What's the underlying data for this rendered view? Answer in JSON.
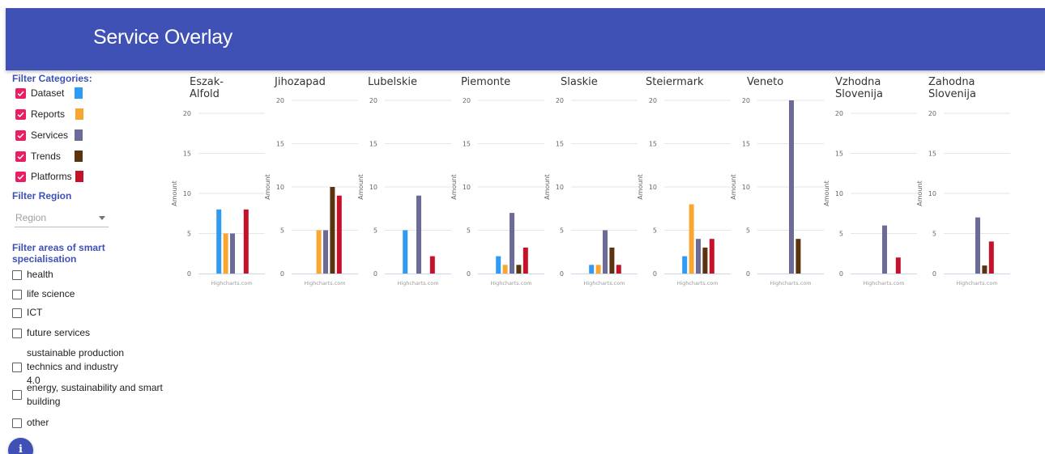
{
  "app": {
    "title": "Service Overlay"
  },
  "filters": {
    "categories_title": "Filter Categories:",
    "categories": [
      {
        "label": "Dataset",
        "checked": true,
        "color": "#2f9bf3"
      },
      {
        "label": "Reports",
        "checked": true,
        "color": "#f9a630"
      },
      {
        "label": "Services",
        "checked": true,
        "color": "#6c6a96"
      },
      {
        "label": "Trends",
        "checked": true,
        "color": "#5a3410"
      },
      {
        "label": "Platforms",
        "checked": true,
        "color": "#c4122b"
      }
    ],
    "region_title": "Filter Region",
    "region_select": {
      "placeholder": "Region"
    },
    "areas_title": "Filter areas of smart specialisation",
    "areas": [
      {
        "label": "health",
        "checked": false
      },
      {
        "label": "life science",
        "checked": false
      },
      {
        "label": "ICT",
        "checked": false
      },
      {
        "label": "future services",
        "checked": false
      },
      {
        "label": "sustainable production technics and industry 4.0",
        "checked": false
      },
      {
        "label": "energy, sustainability and smart building",
        "checked": false
      },
      {
        "label": "other",
        "checked": false
      }
    ]
  },
  "chart_data": [
    {
      "type": "bar",
      "title": "Eszak-\nAlfold",
      "ylabel": "Amount",
      "credits": "Highcharts.com",
      "ylim": [
        0,
        20
      ],
      "yticks": [
        0,
        5,
        10,
        15,
        20
      ],
      "series": [
        {
          "values": [
            8
          ]
        },
        {
          "values": [
            5
          ]
        },
        {
          "values": [
            5
          ]
        },
        {
          "values": [
            0
          ]
        },
        {
          "values": [
            8
          ]
        }
      ]
    },
    {
      "type": "bar",
      "title": "Jihozapad",
      "ylabel": "Amount",
      "credits": "Highcharts.com",
      "ylim": [
        0,
        20
      ],
      "yticks": [
        0,
        5,
        10,
        15,
        20
      ],
      "series": [
        {
          "values": [
            0
          ]
        },
        {
          "values": [
            5
          ]
        },
        {
          "values": [
            5
          ]
        },
        {
          "values": [
            10
          ]
        },
        {
          "values": [
            9
          ]
        }
      ]
    },
    {
      "type": "bar",
      "title": "Lubelskie",
      "ylabel": "Amount",
      "credits": "Highcharts.com",
      "ylim": [
        0,
        20
      ],
      "yticks": [
        0,
        5,
        10,
        15,
        20
      ],
      "series": [
        {
          "values": [
            5
          ]
        },
        {
          "values": [
            0
          ]
        },
        {
          "values": [
            9
          ]
        },
        {
          "values": [
            0
          ]
        },
        {
          "values": [
            2
          ]
        }
      ]
    },
    {
      "type": "bar",
      "title": "Piemonte",
      "ylabel": "Amount",
      "credits": "Highcharts.com",
      "ylim": [
        0,
        20
      ],
      "yticks": [
        0,
        5,
        10,
        15,
        20
      ],
      "series": [
        {
          "values": [
            2
          ]
        },
        {
          "values": [
            1
          ]
        },
        {
          "values": [
            7
          ]
        },
        {
          "values": [
            1
          ]
        },
        {
          "values": [
            3
          ]
        }
      ]
    },
    {
      "type": "bar",
      "title": "Slaskie",
      "ylabel": "Amount",
      "credits": "Highcharts.com",
      "ylim": [
        0,
        20
      ],
      "yticks": [
        0,
        5,
        10,
        15,
        20
      ],
      "series": [
        {
          "values": [
            1
          ]
        },
        {
          "values": [
            1
          ]
        },
        {
          "values": [
            5
          ]
        },
        {
          "values": [
            3
          ]
        },
        {
          "values": [
            1
          ]
        }
      ]
    },
    {
      "type": "bar",
      "title": "Steiermark",
      "ylabel": "Amount",
      "credits": "Highcharts.com",
      "ylim": [
        0,
        20
      ],
      "yticks": [
        0,
        5,
        10,
        15,
        20
      ],
      "series": [
        {
          "values": [
            2
          ]
        },
        {
          "values": [
            8
          ]
        },
        {
          "values": [
            4
          ]
        },
        {
          "values": [
            3
          ]
        },
        {
          "values": [
            4
          ]
        }
      ]
    },
    {
      "type": "bar",
      "title": "Veneto",
      "ylabel": "Amount",
      "credits": "Highcharts.com",
      "ylim": [
        0,
        20
      ],
      "yticks": [
        0,
        5,
        10,
        15,
        20
      ],
      "series": [
        {
          "values": [
            0
          ]
        },
        {
          "values": [
            0
          ]
        },
        {
          "values": [
            20
          ]
        },
        {
          "values": [
            4
          ]
        },
        {
          "values": [
            0
          ]
        }
      ]
    },
    {
      "type": "bar",
      "title": "Vzhodna\nSlovenija",
      "ylabel": "Amount",
      "credits": "Highcharts.com",
      "ylim": [
        0,
        20
      ],
      "yticks": [
        0,
        5,
        10,
        15,
        20
      ],
      "series": [
        {
          "values": [
            0
          ]
        },
        {
          "values": [
            0
          ]
        },
        {
          "values": [
            6
          ]
        },
        {
          "values": [
            0
          ]
        },
        {
          "values": [
            2
          ]
        }
      ]
    },
    {
      "type": "bar",
      "title": "Zahodna\nSlovenija",
      "ylabel": "Amount",
      "credits": "Highcharts.com",
      "ylim": [
        0,
        20
      ],
      "yticks": [
        0,
        5,
        10,
        15,
        20
      ],
      "series": [
        {
          "values": [
            0
          ]
        },
        {
          "values": [
            0
          ]
        },
        {
          "values": [
            7
          ]
        },
        {
          "values": [
            1
          ]
        },
        {
          "values": [
            4
          ]
        }
      ]
    }
  ]
}
